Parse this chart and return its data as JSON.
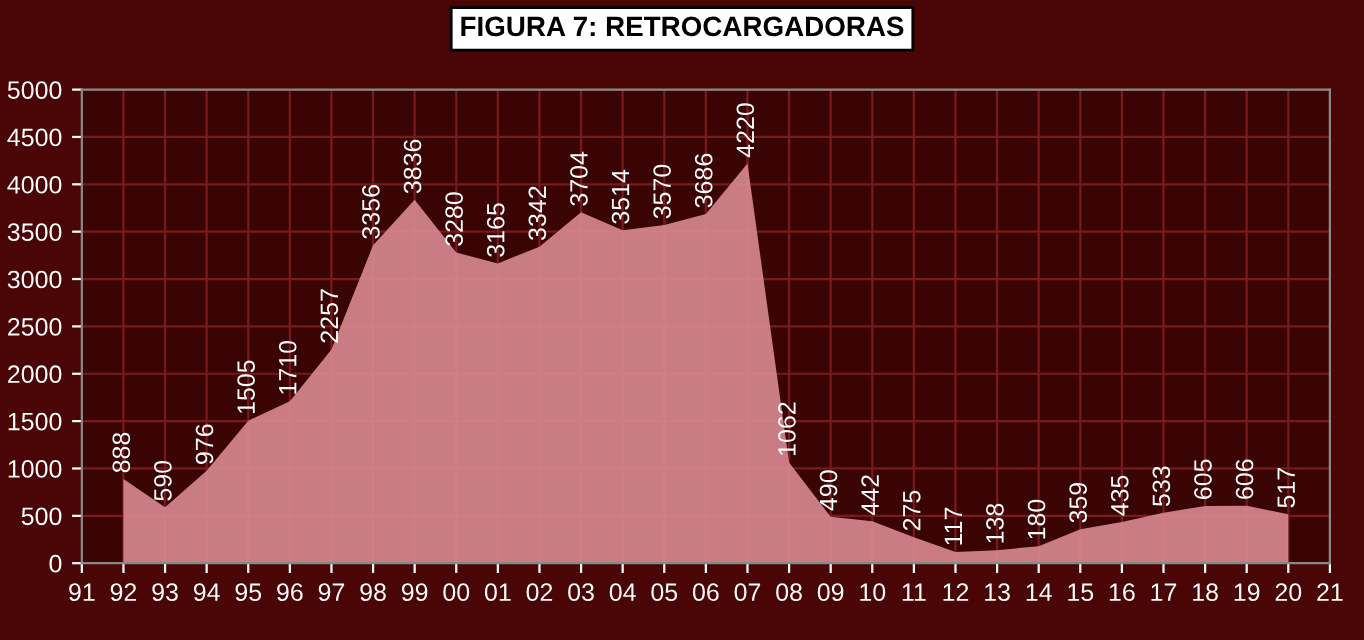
{
  "chart_data": {
    "type": "area",
    "title": "FIGURA 7: RETROCARGADORAS",
    "categories": [
      "91",
      "92",
      "93",
      "94",
      "95",
      "96",
      "97",
      "98",
      "99",
      "00",
      "01",
      "02",
      "03",
      "04",
      "05",
      "06",
      "07",
      "08",
      "09",
      "10",
      "11",
      "12",
      "13",
      "14",
      "15",
      "16",
      "17",
      "18",
      "19",
      "20",
      "21"
    ],
    "series": [
      {
        "color": "#d98a92",
        "values": [
          null,
          888,
          590,
          976,
          1505,
          1710,
          2257,
          3356,
          3836,
          3280,
          3165,
          3342,
          3704,
          3514,
          3570,
          3686,
          4220,
          1062,
          490,
          442,
          275,
          117,
          138,
          180,
          359,
          435,
          533,
          605,
          606,
          517,
          null
        ]
      }
    ],
    "ylim": [
      0,
      5000
    ],
    "yticks": [
      0,
      500,
      1000,
      1500,
      2000,
      2500,
      3000,
      3500,
      4000,
      4500,
      5000
    ],
    "grid": true,
    "data_labels": true
  }
}
